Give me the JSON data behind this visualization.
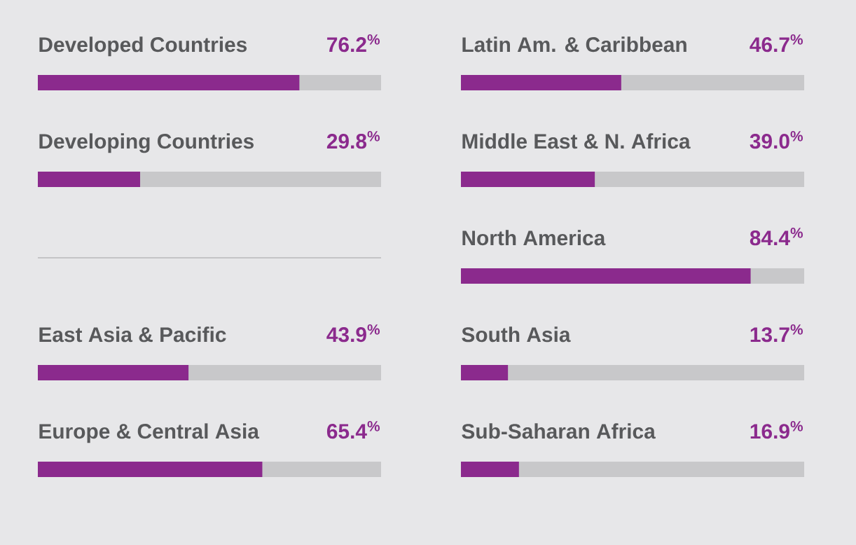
{
  "chart_data": [
    {
      "type": "bar",
      "orientation": "horizontal",
      "categories": [
        "Developed Countries",
        "Developing Countries"
      ],
      "values": [
        76.2,
        29.8
      ],
      "value_labels": [
        "76.2$^{%}$",
        "29.8$^{%}$"
      ],
      "color": "#8b2a8d",
      "xlim": [
        0,
        100
      ],
      "tick_labels": false
    },
    {
      "type": "bar",
      "orientation": "horizontal",
      "categories": [
        "East Asia & Pacific",
        "Europe & Central Asia"
      ],
      "values": [
        43.9,
        65.4
      ],
      "value_labels": [
        "43.9$^{%}$",
        "65.4$^{%}$"
      ],
      "color": "#8b2a8d",
      "xlim": [
        0,
        100
      ],
      "tick_labels": false
    },
    {
      "type": "bar",
      "orientation": "horizontal",
      "categories": [
        "Latin Am. & Caribbean",
        "Middle East & N. Africa",
        "North America",
        "South Asia",
        "Sub-Saharan Africa"
      ],
      "values": [
        46.7,
        39.0,
        84.4,
        13.7,
        16.9
      ],
      "value_labels": [
        "46.7$^{%}$",
        "39.0$^{%}$",
        "84.4$^{%}$",
        "13.7$^{%}$",
        "16.9$^{%}$"
      ],
      "color": "#8b2a8d",
      "xlim": [
        0,
        100
      ],
      "tick_labels": false
    }
  ]
}
